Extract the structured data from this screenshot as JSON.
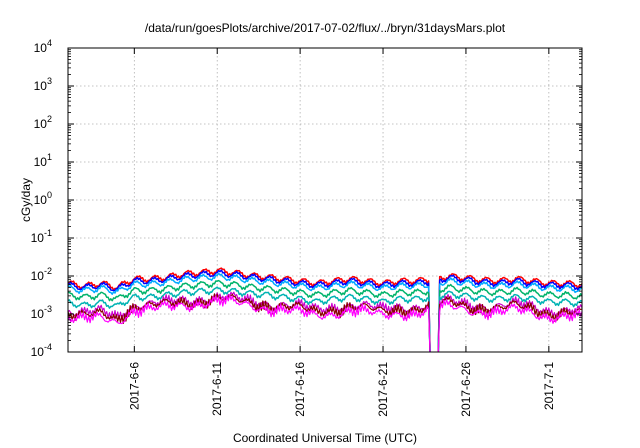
{
  "chart_data": {
    "type": "line",
    "title": "/data/run/goesPlots/archive/2017-07-02/flux/../bryn/31daysMars.plot",
    "xlabel": "Coordinated Universal Time (UTC)",
    "ylabel": "cGy/day",
    "yscale": "log",
    "ylim": [
      0.0001,
      10000
    ],
    "ytick_values": [
      0.0001,
      0.001,
      0.01,
      0.1,
      1,
      10,
      100,
      1000,
      10000
    ],
    "ytick_mantissa": [
      "10",
      "10",
      "10",
      "10",
      "10",
      "10",
      "10",
      "10",
      "10"
    ],
    "ytick_exponent": [
      "-4",
      "-3",
      "-2",
      "-1",
      "0",
      "1",
      "2",
      "3",
      "4"
    ],
    "xlim": [
      "2017-06-02",
      "2017-07-03"
    ],
    "xtick_values": [
      "2017-06-06",
      "2017-06-11",
      "2017-06-16",
      "2017-06-21",
      "2017-06-26",
      "2017-07-01"
    ],
    "xtick_labels": [
      "2017-6-6",
      "2017-6-11",
      "2017-6-16",
      "2017-6-21",
      "2017-6-26",
      "2017-7-1"
    ],
    "grid": true,
    "legend": "none",
    "gap": [
      "2017-06-23T20:00",
      "2017-06-24T08:00"
    ],
    "series": [
      {
        "color": "#ff0000",
        "values": [
          0.0065,
          0.0055,
          0.0065,
          0.005,
          0.0085,
          0.0085,
          0.0095,
          0.0115,
          0.0125,
          0.014,
          0.0125,
          0.0105,
          0.0095,
          0.0085,
          0.0075,
          0.0065,
          0.0075,
          0.0085,
          0.0075,
          0.0065,
          0.0075,
          0.0075,
          0.0085,
          0.01,
          0.009,
          0.008,
          0.0075,
          0.0085,
          0.0075,
          0.0065,
          0.0065,
          0.006
        ]
      },
      {
        "color": "#0000ff",
        "values": [
          0.0058,
          0.005,
          0.0058,
          0.0045,
          0.0075,
          0.0075,
          0.0085,
          0.01,
          0.011,
          0.012,
          0.011,
          0.0095,
          0.0085,
          0.0075,
          0.0065,
          0.0058,
          0.0065,
          0.0075,
          0.0065,
          0.0058,
          0.0065,
          0.0065,
          0.0075,
          0.009,
          0.008,
          0.007,
          0.0065,
          0.0075,
          0.0065,
          0.0058,
          0.0058,
          0.0052
        ]
      },
      {
        "color": "#00aaff",
        "values": [
          0.0048,
          0.0042,
          0.0048,
          0.0038,
          0.0062,
          0.0062,
          0.007,
          0.0082,
          0.009,
          0.0098,
          0.009,
          0.0078,
          0.007,
          0.0062,
          0.0055,
          0.0048,
          0.0055,
          0.0062,
          0.0055,
          0.0048,
          0.0055,
          0.0055,
          0.0062,
          0.0074,
          0.0066,
          0.0058,
          0.0055,
          0.0062,
          0.0055,
          0.0048,
          0.0048,
          0.0044
        ]
      },
      {
        "color": "#00b36b",
        "values": [
          0.0032,
          0.0028,
          0.0032,
          0.0025,
          0.0042,
          0.0042,
          0.0047,
          0.0055,
          0.006,
          0.0065,
          0.006,
          0.0052,
          0.0047,
          0.0042,
          0.0037,
          0.0032,
          0.0037,
          0.0042,
          0.0037,
          0.0032,
          0.0037,
          0.0037,
          0.0042,
          0.005,
          0.0044,
          0.0039,
          0.0037,
          0.0042,
          0.0037,
          0.0032,
          0.0032,
          0.0029
        ]
      },
      {
        "color": "#00b3b3",
        "values": [
          0.002,
          0.0017,
          0.002,
          0.0016,
          0.0028,
          0.0028,
          0.0032,
          0.0037,
          0.004,
          0.0043,
          0.004,
          0.0035,
          0.0032,
          0.0028,
          0.0025,
          0.0021,
          0.0025,
          0.0028,
          0.0025,
          0.0021,
          0.0025,
          0.0025,
          0.0028,
          0.0034,
          0.003,
          0.0026,
          0.0025,
          0.0028,
          0.0025,
          0.0021,
          0.0021,
          0.0019
        ]
      },
      {
        "color": "#cc00cc",
        "values": [
          0.0012,
          0.001,
          0.0012,
          0.0009,
          0.0018,
          0.0018,
          0.002,
          0.0024,
          0.0026,
          0.0028,
          0.0026,
          0.0022,
          0.002,
          0.0018,
          0.0016,
          0.0013,
          0.0016,
          0.0018,
          0.0016,
          0.0013,
          0.0016,
          0.0016,
          0.0018,
          0.0022,
          0.0019,
          0.0017,
          0.0016,
          0.0018,
          0.0016,
          0.0013,
          0.0013,
          0.0012
        ]
      },
      {
        "color": "#8b0000",
        "values": [
          0.001,
          0.00085,
          0.001,
          0.0008,
          0.0016,
          0.0016,
          0.0018,
          0.0021,
          0.0023,
          0.0025,
          0.0023,
          0.002,
          0.0018,
          0.0016,
          0.0014,
          0.0011,
          0.0014,
          0.0016,
          0.0014,
          0.0011,
          0.0014,
          0.0014,
          0.0016,
          0.002,
          0.0017,
          0.0015,
          0.0014,
          0.0016,
          0.0014,
          0.0011,
          0.0011,
          0.001
        ]
      },
      {
        "color": "#ff00ff",
        "values": [
          0.0008,
          0.0007,
          0.0008,
          0.00065,
          0.0013,
          0.0013,
          0.0015,
          0.0018,
          0.002,
          0.0022,
          0.002,
          0.0017,
          0.0015,
          0.0013,
          0.0011,
          0.0009,
          0.0011,
          0.0013,
          0.0011,
          0.0009,
          0.0011,
          0.0011,
          0.0013,
          0.0016,
          0.0014,
          0.0012,
          0.0011,
          0.0013,
          0.0011,
          0.0009,
          0.0009,
          0.0008
        ]
      }
    ]
  }
}
